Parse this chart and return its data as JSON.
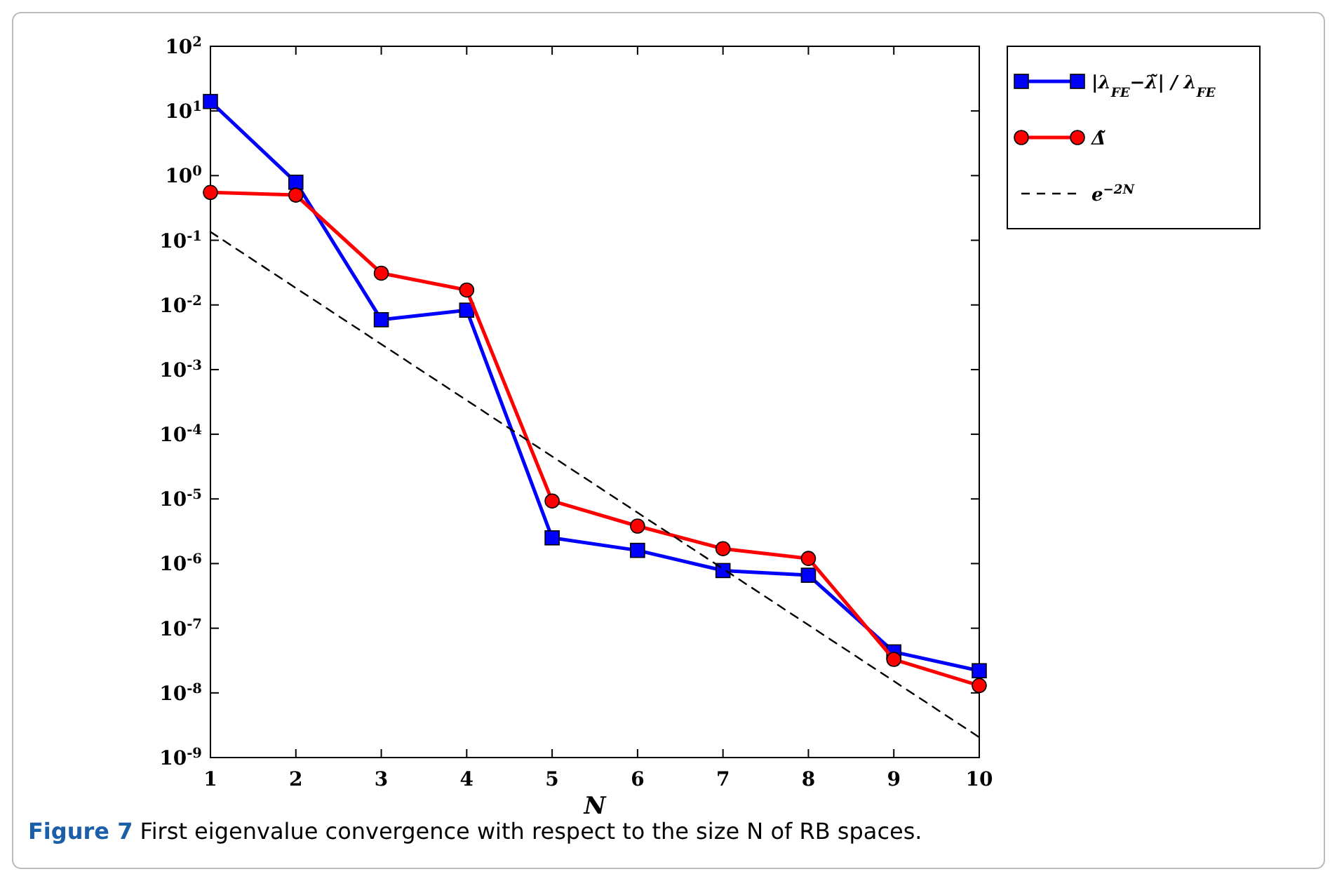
{
  "chart_data": {
    "type": "line",
    "xlabel": "N",
    "x": [
      1,
      2,
      3,
      4,
      5,
      6,
      7,
      8,
      9,
      10
    ],
    "log": "y",
    "xlim": [
      1,
      10
    ],
    "xticks": [
      1,
      2,
      3,
      4,
      5,
      6,
      7,
      8,
      9,
      10
    ],
    "ylim": [
      1e-09,
      100
    ],
    "yticks": [
      {
        "value": 1e-09,
        "label": "10$^{-9}$"
      },
      {
        "value": 1e-08,
        "label": "10$^{-8}$"
      },
      {
        "value": 1e-07,
        "label": "10$^{-7}$"
      },
      {
        "value": 1e-06,
        "label": "10$^{-6}$"
      },
      {
        "value": 1e-05,
        "label": "10$^{-5}$"
      },
      {
        "value": 0.0001,
        "label": "10$^{-4}$"
      },
      {
        "value": 0.001,
        "label": "10$^{-3}$"
      },
      {
        "value": 0.01,
        "label": "10$^{-2}$"
      },
      {
        "value": 0.1,
        "label": "10$^{-1}$"
      },
      {
        "value": 1,
        "label": "10$^{0}$"
      },
      {
        "value": 10,
        "label": "10$^{1}$"
      },
      {
        "value": 100,
        "label": "10$^{2}$"
      }
    ],
    "grid": false,
    "legend": "right",
    "series": [
      {
        "name": "|λ$_{FE}$−λ̃| / λ$_{FE}$",
        "color": "#0000ff",
        "marker": "square",
        "line_style": "solid",
        "values": [
          14,
          0.79,
          0.0059,
          0.0083,
          2.5e-06,
          1.6e-06,
          7.8e-07,
          6.6e-07,
          4.3e-08,
          2.2e-08
        ]
      },
      {
        "name": "Δ̃",
        "color": "#ff0000",
        "marker": "circle",
        "line_style": "solid",
        "values": [
          0.55,
          0.5,
          0.031,
          0.017,
          9.3e-06,
          3.8e-06,
          1.7e-06,
          1.2e-06,
          3.3e-08,
          1.3e-08
        ]
      },
      {
        "name": "e$^{−2N}$",
        "color": "#000000",
        "marker": "none",
        "line_style": "dashed",
        "x": [
          1,
          10
        ],
        "values": [
          0.135,
          2.06e-09
        ]
      }
    ],
    "annotations": [
      "Figure 7  First eigenvalue convergence with respect to the size N of RB spaces."
    ]
  }
}
